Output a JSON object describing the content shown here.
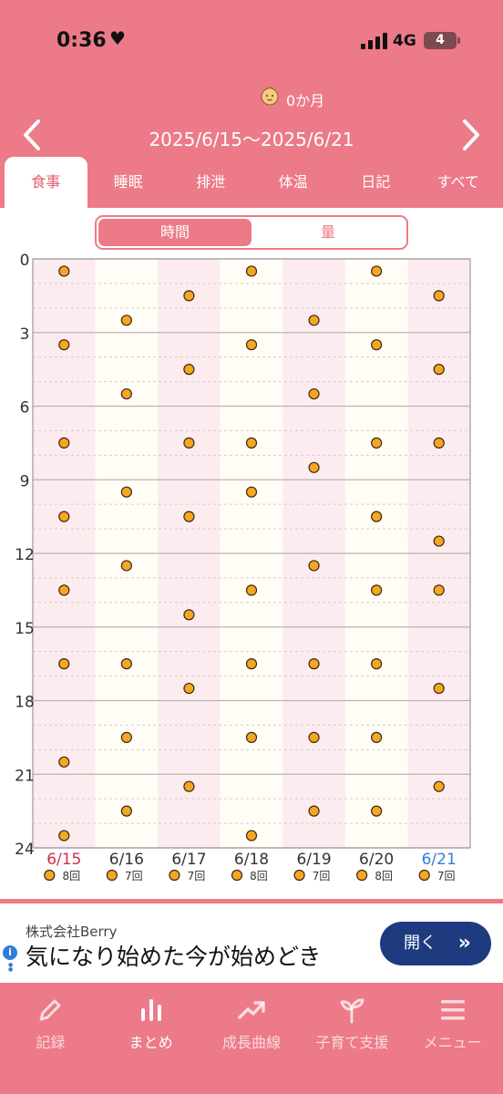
{
  "status_bar": {
    "time": "0:36",
    "network": "4G",
    "battery": "4"
  },
  "header": {
    "age": "0か月",
    "date_range": "2025/6/15〜2025/6/21"
  },
  "tabs": [
    {
      "label": "食事",
      "active": true
    },
    {
      "label": "睡眠",
      "active": false
    },
    {
      "label": "排泄",
      "active": false
    },
    {
      "label": "体温",
      "active": false
    },
    {
      "label": "日記",
      "active": false
    },
    {
      "label": "すべて",
      "active": false
    }
  ],
  "segment": {
    "time_label": "時間",
    "amount_label": "量"
  },
  "chart_data": {
    "type": "scatter",
    "title": "",
    "xlabel": "",
    "ylabel": "",
    "ylim": [
      0,
      24
    ],
    "y_ticks": [
      "0",
      "3",
      "6",
      "9",
      "12",
      "15",
      "18",
      "21",
      "24"
    ],
    "y_reversed": true,
    "categories": [
      "6/15",
      "6/16",
      "6/17",
      "6/18",
      "6/19",
      "6/20",
      "6/21"
    ],
    "category_colors": [
      "#d0304a",
      "#333333",
      "#333333",
      "#333333",
      "#333333",
      "#333333",
      "#2f7dd6"
    ],
    "point_color": "#f5a623",
    "points": [
      [
        0.5,
        3.5,
        7.5,
        10.5,
        13.5,
        16.5,
        20.5,
        23.5
      ],
      [
        2.5,
        5.5,
        9.5,
        12.5,
        16.5,
        19.5,
        22.5
      ],
      [
        1.5,
        4.5,
        7.5,
        10.5,
        14.5,
        17.5,
        21.5
      ],
      [
        0.5,
        3.5,
        7.5,
        9.5,
        13.5,
        16.5,
        19.5,
        23.5
      ],
      [
        2.5,
        5.5,
        8.5,
        12.5,
        16.5,
        19.5,
        22.5
      ],
      [
        0.5,
        3.5,
        7.5,
        10.5,
        13.5,
        16.5,
        19.5,
        22.5
      ],
      [
        1.5,
        4.5,
        7.5,
        11.5,
        13.5,
        17.5,
        21.5
      ]
    ],
    "counts": [
      "8回",
      "7回",
      "7回",
      "8回",
      "7回",
      "8回",
      "7回"
    ]
  },
  "ad": {
    "company": "株式会社Berry",
    "copy": "気になり始めた今が始めどき",
    "button_label": "開く",
    "button_arrow": "»",
    "info_icon": "i"
  },
  "bottom_nav": [
    {
      "label": "記録",
      "icon": "pencil-icon",
      "active": false
    },
    {
      "label": "まとめ",
      "icon": "bar-chart-icon",
      "active": true
    },
    {
      "label": "成長曲線",
      "icon": "trend-up-icon",
      "active": false
    },
    {
      "label": "子育て支援",
      "icon": "sprout-icon",
      "active": false
    },
    {
      "label": "メニュー",
      "icon": "hamburger-icon",
      "active": false
    }
  ]
}
